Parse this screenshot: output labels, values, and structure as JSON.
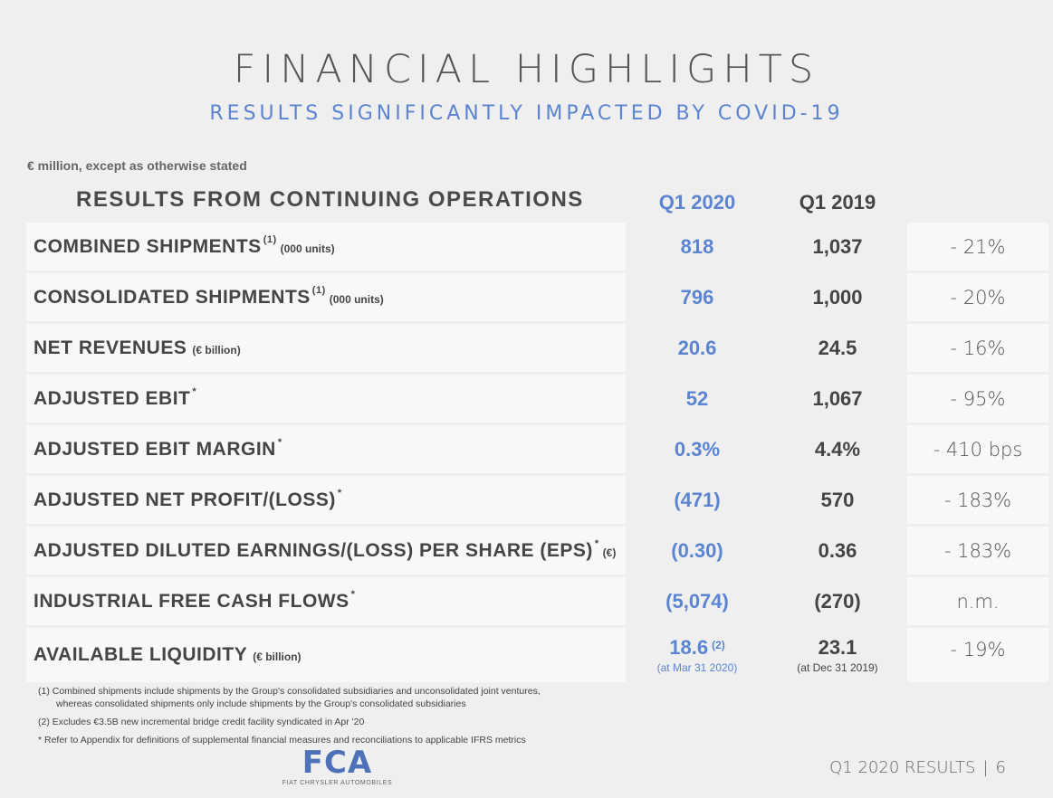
{
  "title": "FINANCIAL HIGHLIGHTS",
  "subtitle": "RESULTS SIGNIFICANTLY IMPACTED BY COVID-19",
  "unit_note": "€ million, except as otherwise stated",
  "section_heading": "RESULTS FROM CONTINUING OPERATIONS",
  "columns": {
    "current": "Q1 2020",
    "prior": "Q1 2019"
  },
  "rows": [
    {
      "label": "COMBINED SHIPMENTS",
      "sup": "(1)",
      "unit": "(000 units)",
      "q1_2020": "818",
      "q1_2019": "1,037",
      "change": "- 21%"
    },
    {
      "label": "CONSOLIDATED SHIPMENTS",
      "sup": "(1)",
      "unit": "(000 units)",
      "q1_2020": "796",
      "q1_2019": "1,000",
      "change": "- 20%"
    },
    {
      "label": "NET REVENUES",
      "sup": "",
      "unit": "(€ billion)",
      "q1_2020": "20.6",
      "q1_2019": "24.5",
      "change": "- 16%"
    },
    {
      "label": "ADJUSTED EBIT",
      "sup": "*",
      "unit": "",
      "q1_2020": "52",
      "q1_2019": "1,067",
      "change": "- 95%"
    },
    {
      "label": "ADJUSTED EBIT MARGIN",
      "sup": "*",
      "unit": "",
      "q1_2020": "0.3%",
      "q1_2019": "4.4%",
      "change": "- 410 bps"
    },
    {
      "label": "ADJUSTED NET PROFIT/(LOSS)",
      "sup": "*",
      "unit": "",
      "q1_2020": "(471)",
      "q1_2019": "570",
      "change": "- 183%"
    },
    {
      "label": "ADJUSTED DILUTED EARNINGS/(LOSS) PER SHARE (EPS)",
      "sup": "*",
      "unit": "(€)",
      "q1_2020": "(0.30)",
      "q1_2019": "0.36",
      "change": "- 183%"
    },
    {
      "label": "INDUSTRIAL FREE CASH FLOWS",
      "sup": "*",
      "unit": "",
      "q1_2020": "(5,074)",
      "q1_2019": "(270)",
      "change": "n.m."
    },
    {
      "label": "AVAILABLE LIQUIDITY",
      "sup": "",
      "unit": "(€ billion)",
      "q1_2020": "18.6",
      "q1_2020_sup": "(2)",
      "q1_2020_note": "(at Mar 31 2020)",
      "q1_2019": "23.1",
      "q1_2019_note": "(at Dec 31 2019)",
      "change": "- 19%"
    }
  ],
  "footnotes": {
    "fn1_line1": "(1)  Combined shipments include shipments by the Group's consolidated subsidiaries and unconsolidated joint ventures,",
    "fn1_line2": "whereas consolidated shipments only include shipments by the Group's consolidated subsidiaries",
    "fn2": "(2)  Excludes €3.5B new incremental bridge credit facility syndicated in Apr '20",
    "fn3": "* Refer to Appendix for definitions of supplemental financial measures and reconciliations to applicable IFRS metrics"
  },
  "logo": {
    "mark": "FCA",
    "tagline": "FIAT CHRYSLER AUTOMOBILES"
  },
  "footer": {
    "text": "Q1 2020 RESULTS",
    "separator": "|",
    "page": "6"
  },
  "colors": {
    "accent": "#5b84d1",
    "text": "#454545",
    "background": "#efefef",
    "cell": "#f8f8f8"
  }
}
